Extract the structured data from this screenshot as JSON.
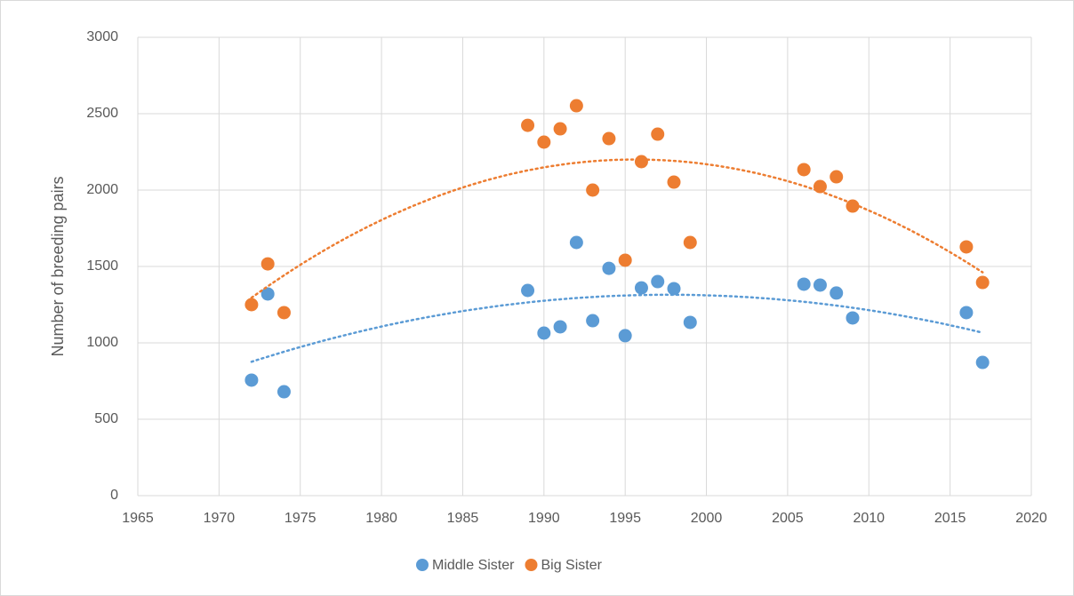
{
  "chart_data": {
    "type": "scatter",
    "y_label": "Number of breeding pairs",
    "xlim": [
      1965,
      2020
    ],
    "xticks": [
      1965,
      1970,
      1975,
      1980,
      1985,
      1990,
      1995,
      2000,
      2005,
      2010,
      2015,
      2020
    ],
    "ylim": [
      0,
      3000
    ],
    "yticks": [
      0,
      500,
      1000,
      1500,
      2000,
      2500,
      3000
    ],
    "grid": true,
    "legend": "bottom",
    "trendline_order": 2,
    "series": [
      {
        "name": "Middle Sister",
        "color": "#5b9bd5",
        "x": [
          1972,
          1973,
          1974,
          1989,
          1990,
          1991,
          1992,
          1993,
          1994,
          1995,
          1996,
          1997,
          1998,
          1999,
          2006,
          2007,
          2008,
          2009,
          2016,
          2017
        ],
        "values": [
          756,
          1320,
          680,
          1343,
          1064,
          1105,
          1657,
          1145,
          1488,
          1047,
          1360,
          1401,
          1355,
          1134,
          1384,
          1378,
          1326,
          1163,
          1198,
          872
        ]
      },
      {
        "name": "Big Sister",
        "color": "#ed7d31",
        "x": [
          1972,
          1973,
          1974,
          1989,
          1990,
          1991,
          1992,
          1993,
          1994,
          1995,
          1996,
          1997,
          1998,
          1999,
          2006,
          2007,
          2008,
          2009,
          2016,
          2017
        ],
        "values": [
          1250,
          1517,
          1198,
          2424,
          2314,
          2401,
          2552,
          2000,
          2337,
          1541,
          2186,
          2366,
          2052,
          1657,
          2134,
          2023,
          2087,
          1895,
          1628,
          1395
        ]
      }
    ]
  }
}
